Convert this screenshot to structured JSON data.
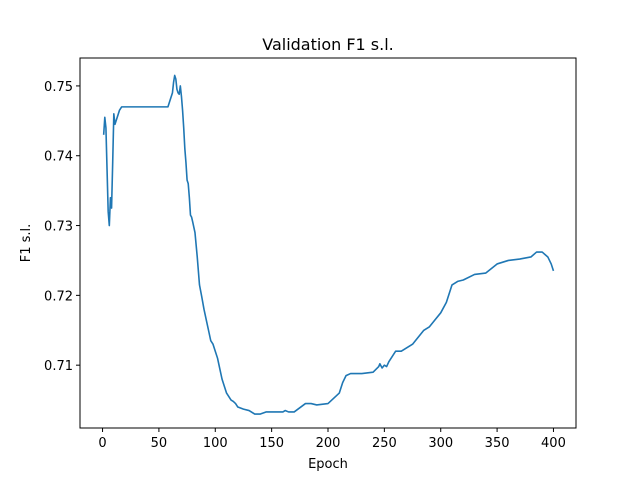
{
  "chart_data": {
    "type": "line",
    "title": "Validation F1 s.l.",
    "xlabel": "Epoch",
    "ylabel": "F1 s.l.",
    "xlim": [
      -20,
      420
    ],
    "ylim": [
      0.701,
      0.754
    ],
    "xticks": [
      0,
      50,
      100,
      150,
      200,
      250,
      300,
      350,
      400
    ],
    "yticks": [
      0.71,
      0.72,
      0.73,
      0.74,
      0.75
    ],
    "ytick_labels": [
      "0.71",
      "0.72",
      "0.73",
      "0.74",
      "0.75"
    ],
    "grid": false,
    "line_color": "#1f77b4",
    "series": [
      {
        "x": [
          1,
          2,
          3,
          4,
          5,
          6,
          7,
          8,
          9,
          10,
          11,
          12,
          13,
          14,
          15,
          17,
          19,
          21,
          25,
          30,
          40,
          50,
          55,
          58,
          60,
          62,
          63,
          64,
          65,
          66,
          67,
          68,
          69,
          70,
          71,
          72,
          73,
          74,
          75,
          76,
          77,
          78,
          79,
          80,
          82,
          84,
          86,
          88,
          90,
          92,
          94,
          96,
          98,
          100,
          102,
          104,
          106,
          108,
          110,
          112,
          114,
          116,
          118,
          120,
          125,
          130,
          135,
          140,
          145,
          150,
          155,
          160,
          162,
          165,
          170,
          180,
          185,
          190,
          200,
          210,
          213,
          216,
          220,
          230,
          240,
          245,
          246,
          248,
          250,
          252,
          254,
          256,
          258,
          260,
          265,
          270,
          275,
          280,
          285,
          290,
          295,
          300,
          305,
          308,
          310,
          315,
          320,
          330,
          340,
          350,
          360,
          370,
          380,
          385,
          390,
          395,
          398,
          400
        ],
        "y": [
          0.743,
          0.7455,
          0.744,
          0.738,
          0.732,
          0.73,
          0.734,
          0.7325,
          0.739,
          0.746,
          0.7445,
          0.745,
          0.7455,
          0.746,
          0.7465,
          0.747,
          0.747,
          0.747,
          0.747,
          0.747,
          0.747,
          0.747,
          0.747,
          0.747,
          0.748,
          0.749,
          0.7505,
          0.7515,
          0.751,
          0.7495,
          0.749,
          0.7488,
          0.75,
          0.7485,
          0.7465,
          0.744,
          0.741,
          0.739,
          0.7365,
          0.736,
          0.734,
          0.7315,
          0.7312,
          0.7305,
          0.729,
          0.7255,
          0.7215,
          0.7198,
          0.718,
          0.7165,
          0.715,
          0.7135,
          0.713,
          0.712,
          0.711,
          0.7095,
          0.708,
          0.707,
          0.706,
          0.7055,
          0.705,
          0.7048,
          0.7045,
          0.704,
          0.7037,
          0.7035,
          0.703,
          0.703,
          0.7033,
          0.7033,
          0.7033,
          0.7033,
          0.7035,
          0.7033,
          0.7033,
          0.7045,
          0.7045,
          0.7043,
          0.7045,
          0.706,
          0.7075,
          0.7085,
          0.7088,
          0.7088,
          0.709,
          0.7098,
          0.7102,
          0.7096,
          0.71,
          0.7098,
          0.7105,
          0.711,
          0.7115,
          0.712,
          0.712,
          0.7125,
          0.713,
          0.714,
          0.715,
          0.7155,
          0.7165,
          0.7175,
          0.719,
          0.7205,
          0.7215,
          0.722,
          0.7222,
          0.723,
          0.7232,
          0.7245,
          0.725,
          0.7252,
          0.7255,
          0.7262,
          0.7262,
          0.7255,
          0.7245,
          0.7235
        ]
      }
    ]
  }
}
